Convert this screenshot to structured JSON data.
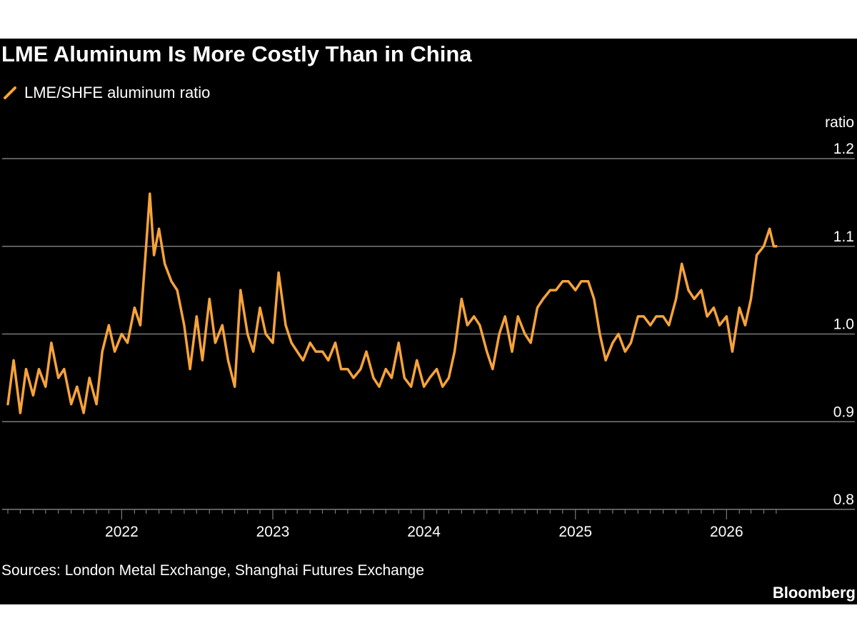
{
  "header": {
    "title": "LME Aluminum Is More Costly Than in China"
  },
  "footer": {
    "source": "Sources: London Metal Exchange, Shanghai Futures Exchange",
    "brand": "Bloomberg"
  },
  "colors": {
    "background": "#000000",
    "series": "#f7a33a",
    "gridline": "#7a7a7a",
    "text": "#ffffff"
  },
  "chart_data": {
    "type": "line",
    "title": "LME Aluminum Is More Costly Than in China",
    "ylabel": "ratio",
    "xlabel": "",
    "ylim": [
      0.8,
      1.2
    ],
    "yticks": [
      "0.8",
      "0.9",
      "1.0",
      "1.1",
      "1.2"
    ],
    "xlim": [
      "2021-04-01",
      "2026-05-15"
    ],
    "xticks": [
      "2022",
      "2023",
      "2024",
      "2025",
      "2026"
    ],
    "grid": true,
    "legend": "top-left",
    "series": [
      {
        "name": "LME/SHFE aluminum ratio",
        "color": "#f7a33a",
        "x": [
          "2021-04-01",
          "2021-04-15",
          "2021-05-01",
          "2021-05-15",
          "2021-06-01",
          "2021-06-15",
          "2021-07-01",
          "2021-07-15",
          "2021-08-01",
          "2021-08-15",
          "2021-09-01",
          "2021-09-15",
          "2021-10-01",
          "2021-10-15",
          "2021-11-01",
          "2021-11-15",
          "2021-12-01",
          "2021-12-15",
          "2022-01-01",
          "2022-01-15",
          "2022-02-01",
          "2022-02-15",
          "2022-03-01",
          "2022-03-10",
          "2022-03-20",
          "2022-04-01",
          "2022-04-15",
          "2022-05-01",
          "2022-05-15",
          "2022-06-01",
          "2022-06-15",
          "2022-07-01",
          "2022-07-15",
          "2022-08-01",
          "2022-08-15",
          "2022-09-01",
          "2022-09-15",
          "2022-10-01",
          "2022-10-15",
          "2022-11-01",
          "2022-11-15",
          "2022-12-01",
          "2022-12-15",
          "2023-01-01",
          "2023-01-15",
          "2023-02-01",
          "2023-02-15",
          "2023-03-01",
          "2023-03-15",
          "2023-04-01",
          "2023-04-15",
          "2023-05-01",
          "2023-05-15",
          "2023-06-01",
          "2023-06-15",
          "2023-07-01",
          "2023-07-15",
          "2023-08-01",
          "2023-08-15",
          "2023-09-01",
          "2023-09-15",
          "2023-10-01",
          "2023-10-15",
          "2023-11-01",
          "2023-11-15",
          "2023-12-01",
          "2023-12-15",
          "2024-01-01",
          "2024-01-15",
          "2024-02-01",
          "2024-02-15",
          "2024-03-01",
          "2024-03-15",
          "2024-04-01",
          "2024-04-15",
          "2024-05-01",
          "2024-05-15",
          "2024-06-01",
          "2024-06-15",
          "2024-07-01",
          "2024-07-15",
          "2024-08-01",
          "2024-08-15",
          "2024-09-01",
          "2024-09-15",
          "2024-10-01",
          "2024-10-15",
          "2024-11-01",
          "2024-11-15",
          "2024-12-01",
          "2024-12-15",
          "2025-01-01",
          "2025-01-15",
          "2025-02-01",
          "2025-02-15",
          "2025-03-01",
          "2025-03-15",
          "2025-04-01",
          "2025-04-15",
          "2025-05-01",
          "2025-05-15",
          "2025-06-01",
          "2025-06-15",
          "2025-07-01",
          "2025-07-15",
          "2025-08-01",
          "2025-08-15",
          "2025-09-01",
          "2025-09-15",
          "2025-10-01",
          "2025-10-15",
          "2025-11-01",
          "2025-11-15",
          "2025-12-01",
          "2025-12-15",
          "2026-01-01",
          "2026-01-15",
          "2026-02-01",
          "2026-02-15",
          "2026-03-01",
          "2026-03-15",
          "2026-04-01",
          "2026-04-15",
          "2026-04-25",
          "2026-05-01"
        ],
        "values": [
          0.92,
          0.97,
          0.91,
          0.96,
          0.93,
          0.96,
          0.94,
          0.99,
          0.95,
          0.96,
          0.92,
          0.94,
          0.91,
          0.95,
          0.92,
          0.98,
          1.01,
          0.98,
          1.0,
          0.99,
          1.03,
          1.01,
          1.1,
          1.16,
          1.09,
          1.12,
          1.08,
          1.06,
          1.05,
          1.01,
          0.96,
          1.02,
          0.97,
          1.04,
          0.99,
          1.01,
          0.97,
          0.94,
          1.05,
          1.0,
          0.98,
          1.03,
          1.0,
          0.99,
          1.07,
          1.01,
          0.99,
          0.98,
          0.97,
          0.99,
          0.98,
          0.98,
          0.97,
          0.99,
          0.96,
          0.96,
          0.95,
          0.96,
          0.98,
          0.95,
          0.94,
          0.96,
          0.95,
          0.99,
          0.95,
          0.94,
          0.97,
          0.94,
          0.95,
          0.96,
          0.94,
          0.95,
          0.98,
          1.04,
          1.01,
          1.02,
          1.01,
          0.98,
          0.96,
          1.0,
          1.02,
          0.98,
          1.02,
          1.0,
          0.99,
          1.03,
          1.04,
          1.05,
          1.05,
          1.06,
          1.06,
          1.05,
          1.06,
          1.06,
          1.04,
          1.0,
          0.97,
          0.99,
          1.0,
          0.98,
          0.99,
          1.02,
          1.02,
          1.01,
          1.02,
          1.02,
          1.01,
          1.04,
          1.08,
          1.05,
          1.04,
          1.05,
          1.02,
          1.03,
          1.01,
          1.02,
          0.98,
          1.03,
          1.01,
          1.04,
          1.09,
          1.1,
          1.12,
          1.1,
          1.1
        ]
      }
    ]
  }
}
